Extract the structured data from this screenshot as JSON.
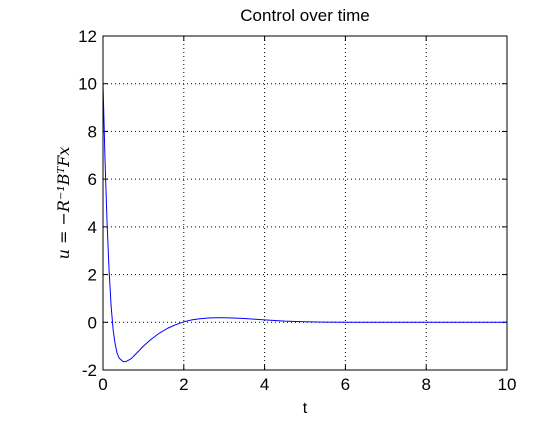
{
  "figure": {
    "background": "#ffffff"
  },
  "chart_data": {
    "type": "line",
    "title": "Control over time",
    "xlabel": "t",
    "ylabel": "u = −R⁻¹BᵀFx",
    "xlim": [
      0,
      10
    ],
    "ylim": [
      -2,
      12
    ],
    "xticks": [
      0,
      2,
      4,
      6,
      8,
      10
    ],
    "yticks": [
      -2,
      0,
      2,
      4,
      6,
      8,
      10,
      12
    ],
    "grid": true,
    "grid_style": "dotted",
    "legend": "none",
    "series": [
      {
        "color": "#0000ff",
        "x": [
          0,
          0.05,
          0.1,
          0.15,
          0.2,
          0.25,
          0.3,
          0.35,
          0.4,
          0.5,
          0.55,
          0.6,
          0.7,
          0.8,
          1.0,
          1.2,
          1.4,
          1.6,
          1.8,
          2.0,
          2.2,
          2.4,
          2.6,
          2.8,
          3.0,
          3.2,
          3.5,
          4.0,
          4.5,
          5.0,
          5.5,
          6.0,
          7.0,
          8.0,
          9.0,
          10.0
        ],
        "y": [
          10,
          6.8,
          4.2,
          2.2,
          0.7,
          -0.3,
          -0.9,
          -1.3,
          -1.5,
          -1.65,
          -1.65,
          -1.62,
          -1.52,
          -1.35,
          -1.0,
          -0.7,
          -0.45,
          -0.25,
          -0.1,
          0.02,
          0.1,
          0.15,
          0.18,
          0.19,
          0.19,
          0.18,
          0.16,
          0.1,
          0.05,
          0.02,
          0.005,
          0.0,
          0.0,
          0.0,
          0.0,
          0.0
        ]
      }
    ]
  }
}
